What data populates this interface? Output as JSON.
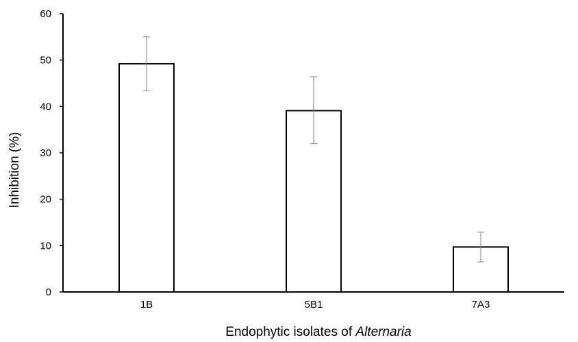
{
  "chart_data": {
    "type": "bar",
    "title": "",
    "xlabel_prefix": "Endophytic isolates of ",
    "xlabel_italic": "Alternaria",
    "ylabel": "Inhibition (%)",
    "categories": [
      "1B",
      "5B1",
      "7A3"
    ],
    "series": [
      {
        "values": [
          49.2,
          39.1,
          9.7
        ],
        "error_low": [
          43.4,
          32.0,
          6.5
        ],
        "error_high": [
          55.0,
          46.4,
          12.9
        ]
      }
    ],
    "ylim": [
      0,
      60
    ],
    "yticks": [
      "0",
      "10",
      "20",
      "30",
      "40",
      "50",
      "60"
    ],
    "grid": false,
    "legend": "none",
    "colors": {
      "bar_fill": "#ffffff",
      "bar_stroke": "#000000",
      "error_bar": "#808080"
    }
  }
}
